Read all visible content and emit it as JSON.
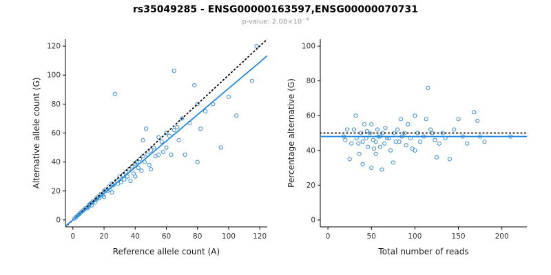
{
  "header": {
    "title": "rs35049285 - ENSG00000163597,ENSG00000070731",
    "subtitle_prefix": "p-value: 2.08×10",
    "subtitle_sup": "−4"
  },
  "style": {
    "point_color": "#3d8ed0",
    "fit_line_color": "#2289e0",
    "identity_line_color": "#000000",
    "tick_label_color": "#333333",
    "axis_label_color": "#1a1a1a"
  },
  "chart_data": [
    {
      "type": "scatter",
      "xlabel": "Reference allele count (A)",
      "ylabel": "Alternative allele count (G)",
      "xlim": [
        0,
        120
      ],
      "ylim": [
        0,
        120
      ],
      "xticks": [
        0,
        20,
        40,
        60,
        80,
        100,
        120
      ],
      "yticks": [
        0,
        20,
        40,
        60,
        80,
        100,
        120
      ],
      "grid": false,
      "legend": "none",
      "points": [
        [
          1,
          1
        ],
        [
          2,
          2
        ],
        [
          3,
          3
        ],
        [
          4,
          4
        ],
        [
          5,
          5
        ],
        [
          6,
          6
        ],
        [
          7,
          7
        ],
        [
          8,
          8
        ],
        [
          9,
          8
        ],
        [
          10,
          10
        ],
        [
          10,
          9
        ],
        [
          11,
          11
        ],
        [
          12,
          12
        ],
        [
          12,
          10
        ],
        [
          13,
          13
        ],
        [
          14,
          12
        ],
        [
          15,
          15
        ],
        [
          15,
          14
        ],
        [
          16,
          16
        ],
        [
          17,
          15
        ],
        [
          18,
          18
        ],
        [
          19,
          17
        ],
        [
          20,
          20
        ],
        [
          20,
          16
        ],
        [
          21,
          21
        ],
        [
          22,
          20
        ],
        [
          23,
          23
        ],
        [
          24,
          21
        ],
        [
          25,
          25
        ],
        [
          25,
          19
        ],
        [
          26,
          24
        ],
        [
          27,
          87
        ],
        [
          28,
          27
        ],
        [
          29,
          25
        ],
        [
          30,
          30
        ],
        [
          31,
          26
        ],
        [
          32,
          31
        ],
        [
          33,
          28
        ],
        [
          34,
          33
        ],
        [
          35,
          30
        ],
        [
          36,
          35
        ],
        [
          37,
          27
        ],
        [
          38,
          37
        ],
        [
          39,
          32
        ],
        [
          40,
          39
        ],
        [
          40,
          30
        ],
        [
          41,
          40
        ],
        [
          42,
          36
        ],
        [
          43,
          42
        ],
        [
          44,
          34
        ],
        [
          45,
          44
        ],
        [
          45,
          55
        ],
        [
          46,
          40
        ],
        [
          47,
          63
        ],
        [
          48,
          45
        ],
        [
          49,
          38
        ],
        [
          50,
          48
        ],
        [
          50,
          35
        ],
        [
          52,
          50
        ],
        [
          53,
          44
        ],
        [
          55,
          57
        ],
        [
          55,
          45
        ],
        [
          57,
          54
        ],
        [
          58,
          47
        ],
        [
          60,
          60
        ],
        [
          60,
          50
        ],
        [
          62,
          58
        ],
        [
          63,
          45
        ],
        [
          65,
          103
        ],
        [
          65,
          62
        ],
        [
          67,
          64
        ],
        [
          68,
          55
        ],
        [
          70,
          70
        ],
        [
          72,
          45
        ],
        [
          75,
          67
        ],
        [
          78,
          93
        ],
        [
          80,
          80
        ],
        [
          80,
          40
        ],
        [
          82,
          63
        ],
        [
          85,
          75
        ],
        [
          90,
          80
        ],
        [
          95,
          50
        ],
        [
          100,
          85
        ],
        [
          105,
          72
        ],
        [
          115,
          96
        ],
        [
          118,
          120
        ]
      ],
      "lines": [
        {
          "name": "identity-line",
          "style": "dotted",
          "color": "#000000",
          "x": [
            -5,
            125
          ],
          "y": [
            -5,
            125
          ]
        },
        {
          "name": "fit-line",
          "style": "solid",
          "color": "#2289e0",
          "x": [
            -5,
            125
          ],
          "y": [
            -4.5,
            113.5
          ]
        }
      ]
    },
    {
      "type": "scatter",
      "xlabel": "Total number of reads",
      "ylabel": "Percentage alternative (G)",
      "xlim": [
        0,
        220
      ],
      "ylim": [
        0,
        100
      ],
      "xticks": [
        0,
        50,
        100,
        150,
        200
      ],
      "yticks": [
        0,
        20,
        40,
        60,
        80,
        100
      ],
      "grid": false,
      "legend": "none",
      "points": [
        [
          18,
          48
        ],
        [
          20,
          46
        ],
        [
          22,
          52
        ],
        [
          25,
          35
        ],
        [
          27,
          44
        ],
        [
          30,
          52
        ],
        [
          32,
          60
        ],
        [
          33,
          47
        ],
        [
          35,
          44
        ],
        [
          36,
          38
        ],
        [
          38,
          50
        ],
        [
          40,
          45
        ],
        [
          40,
          32
        ],
        [
          42,
          55
        ],
        [
          44,
          47
        ],
        [
          45,
          51
        ],
        [
          46,
          42
        ],
        [
          48,
          50
        ],
        [
          50,
          55
        ],
        [
          50,
          30
        ],
        [
          52,
          46
        ],
        [
          53,
          41
        ],
        [
          55,
          45
        ],
        [
          55,
          38
        ],
        [
          57,
          52
        ],
        [
          58,
          48
        ],
        [
          60,
          48
        ],
        [
          60,
          42
        ],
        [
          62,
          29
        ],
        [
          63,
          50
        ],
        [
          65,
          44
        ],
        [
          66,
          53
        ],
        [
          68,
          47
        ],
        [
          70,
          47
        ],
        [
          72,
          40
        ],
        [
          75,
          33
        ],
        [
          76,
          50
        ],
        [
          78,
          45
        ],
        [
          80,
          52
        ],
        [
          82,
          45
        ],
        [
          84,
          58
        ],
        [
          85,
          48
        ],
        [
          88,
          50
        ],
        [
          90,
          43
        ],
        [
          92,
          55
        ],
        [
          95,
          47
        ],
        [
          97,
          41
        ],
        [
          100,
          60
        ],
        [
          100,
          40
        ],
        [
          103,
          50
        ],
        [
          106,
          45
        ],
        [
          110,
          48
        ],
        [
          113,
          58
        ],
        [
          115,
          76
        ],
        [
          118,
          52
        ],
        [
          120,
          50
        ],
        [
          123,
          46
        ],
        [
          125,
          36
        ],
        [
          128,
          44
        ],
        [
          132,
          50
        ],
        [
          135,
          47
        ],
        [
          140,
          35
        ],
        [
          145,
          52
        ],
        [
          150,
          58
        ],
        [
          155,
          48
        ],
        [
          160,
          44
        ],
        [
          168,
          62
        ],
        [
          172,
          57
        ],
        [
          175,
          48
        ],
        [
          180,
          45
        ],
        [
          210,
          48
        ]
      ],
      "lines": [
        {
          "name": "expected-line",
          "style": "dotted",
          "color": "#000000",
          "x": [
            -9,
            229
          ],
          "y": [
            50,
            50
          ]
        },
        {
          "name": "fit-line",
          "style": "solid",
          "color": "#2289e0",
          "x": [
            -9,
            229
          ],
          "y": [
            48,
            48
          ]
        }
      ]
    }
  ]
}
